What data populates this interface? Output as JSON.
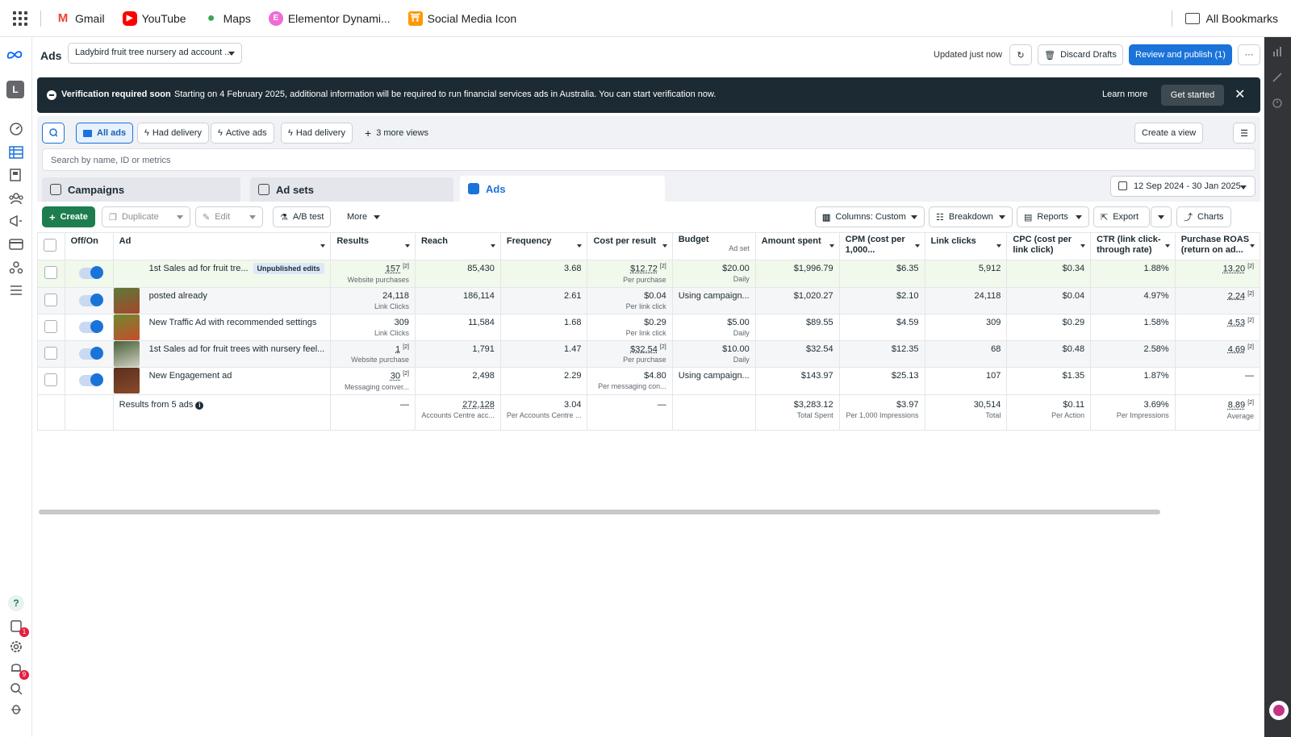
{
  "bookmarks": {
    "items": [
      {
        "label": "Gmail",
        "icon": "gmail-icon",
        "color": "#ea4335"
      },
      {
        "label": "YouTube",
        "icon": "youtube-icon",
        "color": "#ff0000"
      },
      {
        "label": "Maps",
        "icon": "maps-pin-icon",
        "color": "#34a853"
      },
      {
        "label": "Elementor Dynami...",
        "icon": "elementor-icon",
        "color": "#f06bd6"
      },
      {
        "label": "Social Media Icon",
        "icon": "social-media-icon",
        "color": "#ff9800"
      }
    ],
    "all_bookmarks": "All Bookmarks"
  },
  "header": {
    "title": "Ads",
    "account": "Ladybird fruit tree nursery ad account ...",
    "updated": "Updated just now",
    "discard": "Discard Drafts",
    "review": "Review and publish (1)",
    "more": "···"
  },
  "banner": {
    "title": "Verification required soon",
    "text": "Starting on 4 February 2025, additional information will be required to run financial services ads in Australia. You can start verification now.",
    "learn_more": "Learn more",
    "get_started": "Get started",
    "close": "✕"
  },
  "views": {
    "all_ads": "All ads",
    "had_delivery_1": "Had delivery",
    "active_ads": "Active ads",
    "had_delivery_2": "Had delivery",
    "more_views": "3 more views",
    "create_view": "Create a view"
  },
  "search": {
    "placeholder": "Search by name, ID or metrics"
  },
  "tabs": {
    "campaigns": "Campaigns",
    "ad_sets": "Ad sets",
    "ads": "Ads"
  },
  "date_range": "12 Sep 2024 - 30 Jan 2025",
  "toolbar": {
    "create": "Create",
    "duplicate": "Duplicate",
    "edit": "Edit",
    "ab_test": "A/B test",
    "more": "More",
    "columns": "Columns: Custom",
    "breakdown": "Breakdown",
    "reports": "Reports",
    "export": "Export",
    "charts": "Charts"
  },
  "table": {
    "headers": {
      "offon": "Off/On",
      "ad": "Ad",
      "results": "Results",
      "reach": "Reach",
      "frequency": "Frequency",
      "cpr": "Cost per result",
      "budget": "Budget",
      "budget_sub": "Ad set",
      "amount": "Amount spent",
      "cpm1": "CPM (cost per",
      "cpm2": "1,000...",
      "link_clicks": "Link clicks",
      "cpc1": "CPC (cost per",
      "cpc2": "link click)",
      "ctr1": "CTR (link click-",
      "ctr2": "through rate)",
      "roas1": "Purchase ROAS",
      "roas2": "(return on ad..."
    },
    "rows": [
      {
        "ad": "1st Sales ad for fruit tre...",
        "pill": "Unpublished edits",
        "results": "157",
        "results_sub": "Website purchases",
        "reach": "85,430",
        "freq": "3.68",
        "cpr": "$12.72",
        "cpr_sub": "Per purchase",
        "budget": "$20.00",
        "budget_sub": "Daily",
        "amount": "$1,996.79",
        "cpm": "$6.35",
        "clicks": "5,912",
        "cpc": "$0.34",
        "ctr": "1.88%",
        "roas": "13.20"
      },
      {
        "ad": "posted already",
        "pill": "",
        "results": "24,118",
        "results_sub": "Link Clicks",
        "reach": "186,114",
        "freq": "2.61",
        "cpr": "$0.04",
        "cpr_sub": "Per link click",
        "budget": "Using campaign...",
        "budget_sub": "",
        "amount": "$1,020.27",
        "cpm": "$2.10",
        "clicks": "24,118",
        "cpc": "$0.04",
        "ctr": "4.97%",
        "roas": "2.24"
      },
      {
        "ad": "New Traffic Ad with recommended settings",
        "pill": "",
        "results": "309",
        "results_sub": "Link Clicks",
        "reach": "11,584",
        "freq": "1.68",
        "cpr": "$0.29",
        "cpr_sub": "Per link click",
        "budget": "$5.00",
        "budget_sub": "Daily",
        "amount": "$89.55",
        "cpm": "$4.59",
        "clicks": "309",
        "cpc": "$0.29",
        "ctr": "1.58%",
        "roas": "4.53"
      },
      {
        "ad": "1st Sales ad for fruit trees with nursery feel...",
        "pill": "",
        "results": "1",
        "results_sub": "Website purchase",
        "reach": "1,791",
        "freq": "1.47",
        "cpr": "$32.54",
        "cpr_sub": "Per purchase",
        "budget": "$10.00",
        "budget_sub": "Daily",
        "amount": "$32.54",
        "cpm": "$12.35",
        "clicks": "68",
        "cpc": "$0.48",
        "ctr": "2.58%",
        "roas": "4.69"
      },
      {
        "ad": "New Engagement ad",
        "pill": "",
        "results": "30",
        "results_sub": "Messaging conver...",
        "reach": "2,498",
        "freq": "2.29",
        "cpr": "$4.80",
        "cpr_sub": "Per messaging con...",
        "budget": "Using campaign...",
        "budget_sub": "",
        "amount": "$143.97",
        "cpm": "$25.13",
        "clicks": "107",
        "cpc": "$1.35",
        "ctr": "1.87%",
        "roas": "—"
      }
    ],
    "totals": {
      "label": "Results from 5 ads",
      "results": "—",
      "reach": "272,128",
      "reach_sub": "Accounts Centre acc...",
      "freq": "3.04",
      "freq_sub": "Per Accounts Centre ...",
      "cpr": "—",
      "amount": "$3,283.12",
      "amount_sub": "Total Spent",
      "cpm": "$3.97",
      "cpm_sub": "Per 1,000 Impressions",
      "clicks": "30,514",
      "clicks_sub": "Total",
      "cpc": "$0.11",
      "cpc_sub": "Per Action",
      "ctr": "3.69%",
      "ctr_sub": "Per Impressions",
      "roas": "8.89",
      "roas_sub": "Average"
    },
    "sup": "[2]"
  },
  "nav": {
    "avatar": "L",
    "badge_1": "1",
    "badge_2": "9",
    "help": "?"
  }
}
